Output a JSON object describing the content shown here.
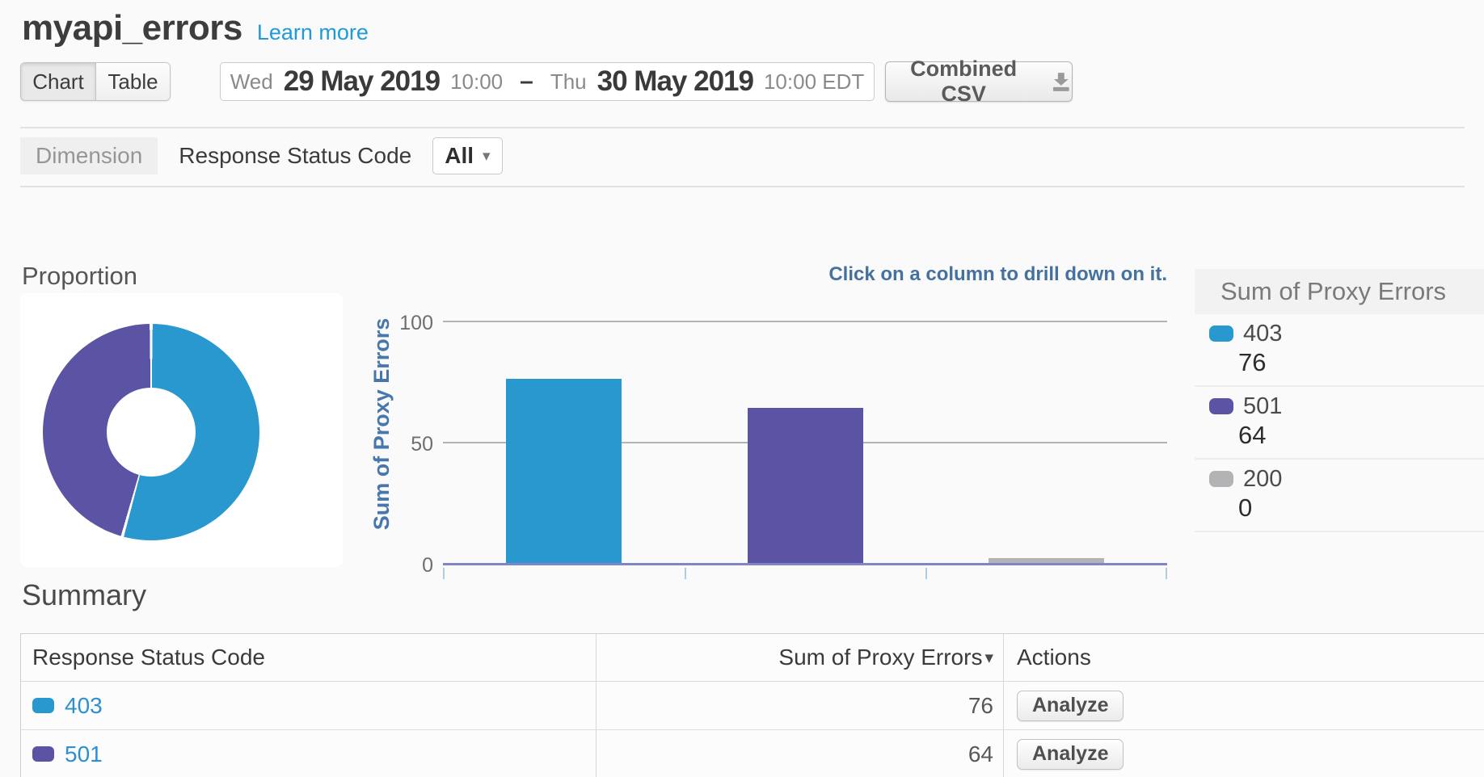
{
  "header": {
    "title": "myapi_errors",
    "learn_more": "Learn more"
  },
  "toolbar": {
    "view_toggle": [
      {
        "label": "Chart",
        "selected": true
      },
      {
        "label": "Table",
        "selected": false
      }
    ],
    "date_range": {
      "start_day": "Wed",
      "start_date": "29 May 2019",
      "start_time": "10:00",
      "separator": "–",
      "end_day": "Thu",
      "end_date": "30 May 2019",
      "end_time": "10:00 EDT"
    },
    "export_button": {
      "label": "Combined CSV",
      "icon": "download-icon"
    }
  },
  "dimension_bar": {
    "label": "Dimension",
    "dimension_name": "Response Status Code",
    "filter": {
      "value": "All",
      "caret": "▾"
    }
  },
  "charts": {
    "proportion_title": "Proportion",
    "drill_hint": "Click on a column to drill down on it."
  },
  "chart_data": [
    {
      "type": "pie",
      "title": "Proportion",
      "labels": [
        "403",
        "501"
      ],
      "values": [
        76,
        64
      ],
      "colors": [
        "#2998CF",
        "#5B54A4"
      ],
      "donut": true
    },
    {
      "type": "bar",
      "categories": [
        "403",
        "501",
        "200"
      ],
      "values": [
        76,
        64,
        0
      ],
      "colors": [
        "#2998CF",
        "#5B54A4",
        "#B3B3B6"
      ],
      "ylabel": "Sum of Proxy Errors",
      "yticks": [
        0,
        50,
        100
      ],
      "ylim": [
        0,
        100
      ],
      "grid": true
    }
  ],
  "legend": {
    "title": "Sum of Proxy Errors",
    "items": [
      {
        "label": "403",
        "value": "76",
        "color": "#2998CF"
      },
      {
        "label": "501",
        "value": "64",
        "color": "#5B54A4"
      },
      {
        "label": "200",
        "value": "0",
        "color": "#B3B3B6"
      }
    ]
  },
  "summary": {
    "title": "Summary",
    "columns": [
      {
        "label": "Response Status Code"
      },
      {
        "label": "Sum of Proxy Errors",
        "sort_icon": "▾"
      },
      {
        "label": "Actions"
      }
    ],
    "rows": [
      {
        "code": "403",
        "color": "#2998CF",
        "value": "76",
        "action": "Analyze"
      },
      {
        "code": "501",
        "color": "#5B54A4",
        "value": "64",
        "action": "Analyze"
      }
    ]
  }
}
